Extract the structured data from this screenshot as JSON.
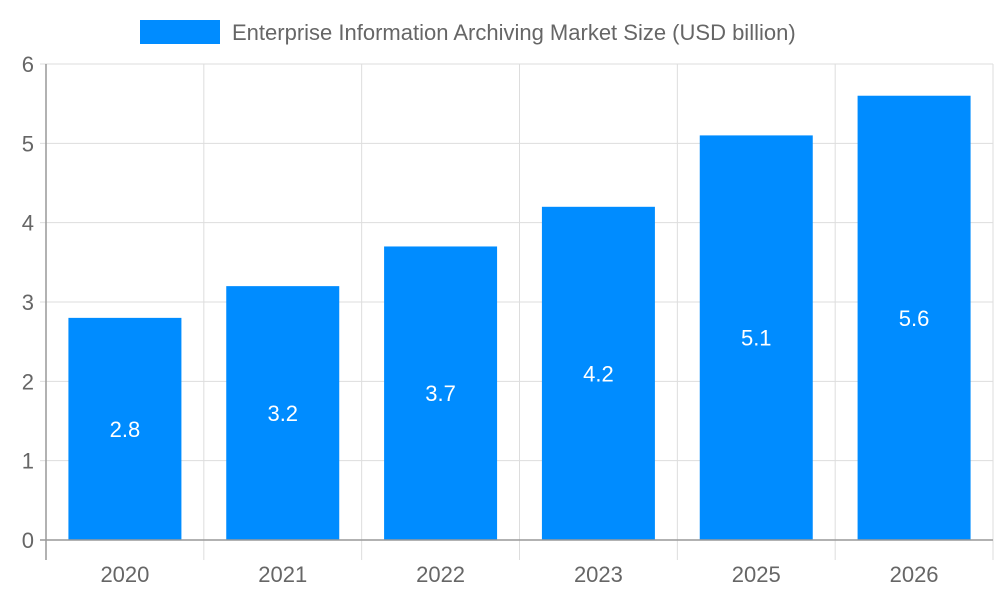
{
  "chart_data": {
    "type": "bar",
    "categories": [
      "2020",
      "2021",
      "2022",
      "2023",
      "2025",
      "2026"
    ],
    "series": [
      {
        "name": "Enterprise Information Archiving Market Size (USD billion)",
        "values": [
          2.8,
          3.2,
          3.7,
          4.2,
          5.1,
          5.6
        ],
        "color": "#008cff"
      }
    ],
    "data_labels": [
      "2.8",
      "3.2",
      "3.7",
      "4.2",
      "5.1",
      "5.6"
    ],
    "yticks": [
      "0",
      "1",
      "2",
      "3",
      "4",
      "5",
      "6"
    ],
    "ylim": [
      0,
      6
    ],
    "grid": true,
    "legend": "top-center",
    "title": "",
    "xlabel": "",
    "ylabel": ""
  }
}
